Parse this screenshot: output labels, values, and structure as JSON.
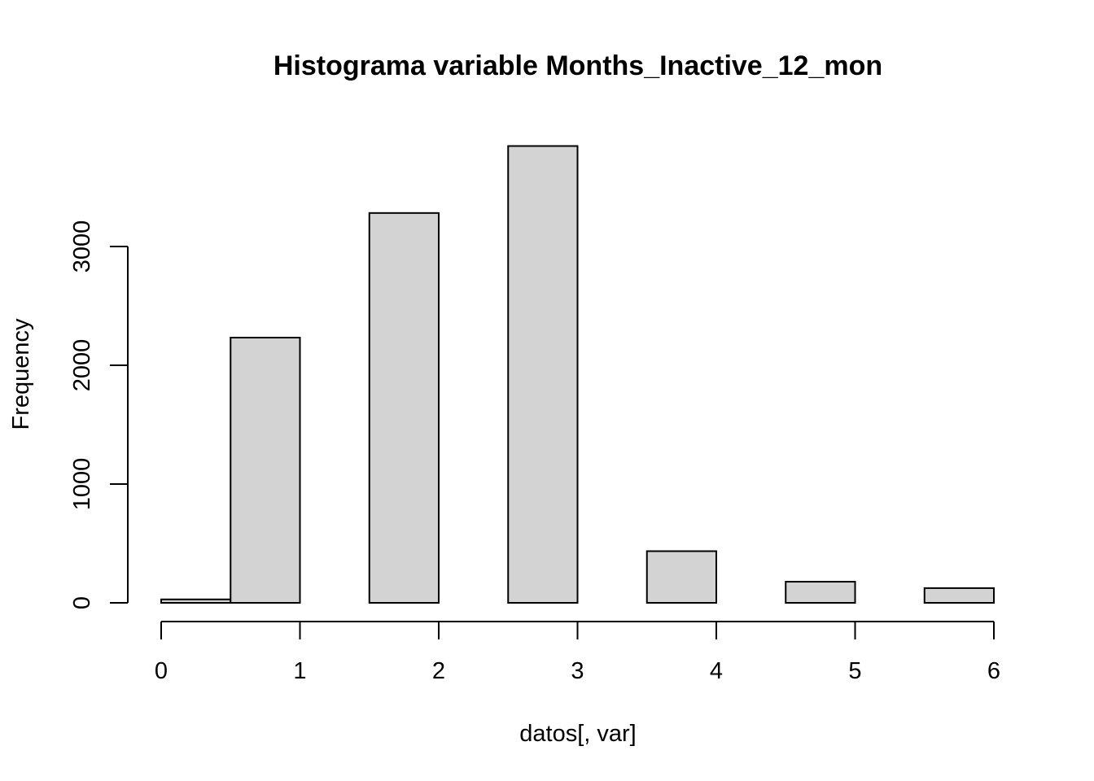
{
  "chart_data": {
    "type": "bar",
    "title": "Histograma variable Months_Inactive_12_mon",
    "xlabel": "datos[, var]",
    "ylabel": "Frequency",
    "bins": [
      {
        "x0": 0.0,
        "x1": 0.5,
        "count": 29
      },
      {
        "x0": 0.5,
        "x1": 1.0,
        "count": 2233
      },
      {
        "x0": 1.0,
        "x1": 1.5,
        "count": 0
      },
      {
        "x0": 1.5,
        "x1": 2.0,
        "count": 3282
      },
      {
        "x0": 2.0,
        "x1": 2.5,
        "count": 0
      },
      {
        "x0": 2.5,
        "x1": 3.0,
        "count": 3846
      },
      {
        "x0": 3.0,
        "x1": 3.5,
        "count": 0
      },
      {
        "x0": 3.5,
        "x1": 4.0,
        "count": 435
      },
      {
        "x0": 4.0,
        "x1": 4.5,
        "count": 0
      },
      {
        "x0": 4.5,
        "x1": 5.0,
        "count": 178
      },
      {
        "x0": 5.0,
        "x1": 5.5,
        "count": 0
      },
      {
        "x0": 5.5,
        "x1": 6.0,
        "count": 124
      }
    ],
    "xlim": [
      0,
      6
    ],
    "ylim": [
      0,
      3846
    ],
    "x_ticks": [
      0,
      1,
      2,
      3,
      4,
      5,
      6
    ],
    "y_ticks": [
      0,
      1000,
      2000,
      3000
    ],
    "bar_color": "#d3d3d3",
    "grid": false,
    "legend": "none"
  }
}
